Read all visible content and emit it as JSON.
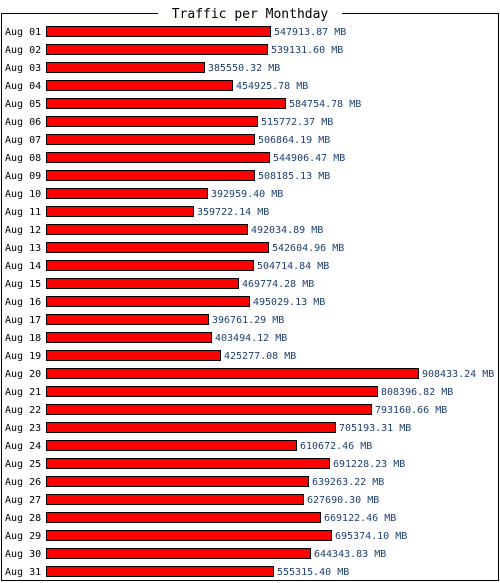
{
  "chart_data": {
    "type": "bar",
    "orientation": "horizontal",
    "title": "Traffic per Monthday",
    "unit": "MB",
    "colors": {
      "bar": "#ff0000",
      "bar_outline": "#000000",
      "value_text": "#1f3f6f",
      "frame": "#000000"
    },
    "categories": [
      "Aug 01",
      "Aug 02",
      "Aug 03",
      "Aug 04",
      "Aug 05",
      "Aug 06",
      "Aug 07",
      "Aug 08",
      "Aug 09",
      "Aug 10",
      "Aug 11",
      "Aug 12",
      "Aug 13",
      "Aug 14",
      "Aug 15",
      "Aug 16",
      "Aug 17",
      "Aug 18",
      "Aug 19",
      "Aug 20",
      "Aug 21",
      "Aug 22",
      "Aug 23",
      "Aug 24",
      "Aug 25",
      "Aug 26",
      "Aug 27",
      "Aug 28",
      "Aug 29",
      "Aug 30",
      "Aug 31"
    ],
    "values": [
      547913.87,
      539131.6,
      385550.32,
      454925.78,
      584754.78,
      515772.37,
      506864.19,
      544906.47,
      508185.13,
      392959.4,
      359722.14,
      492034.89,
      542604.96,
      504714.84,
      469774.28,
      495029.13,
      396761.29,
      403494.12,
      425277.08,
      908433.24,
      808396.82,
      793160.66,
      705193.31,
      610672.46,
      691228.23,
      639263.22,
      627690.3,
      669122.46,
      695374.1,
      644343.83,
      555315.4
    ],
    "value_labels": [
      "547913.87 MB",
      "539131.60 MB",
      "385550.32 MB",
      "454925.78 MB",
      "584754.78 MB",
      "515772.37 MB",
      "506864.19 MB",
      "544906.47 MB",
      "508185.13 MB",
      "392959.40 MB",
      "359722.14 MB",
      "492034.89 MB",
      "542604.96 MB",
      "504714.84 MB",
      "469774.28 MB",
      "495029.13 MB",
      "396761.29 MB",
      "403494.12 MB",
      "425277.08 MB",
      "908433.24 MB",
      "808396.82 MB",
      "793160.66 MB",
      "705193.31 MB",
      "610672.46 MB",
      "691228.23 MB",
      "639263.22 MB",
      "627690.30 MB",
      "669122.46 MB",
      "695374.10 MB",
      "644343.83 MB",
      "555315.40 MB"
    ]
  }
}
